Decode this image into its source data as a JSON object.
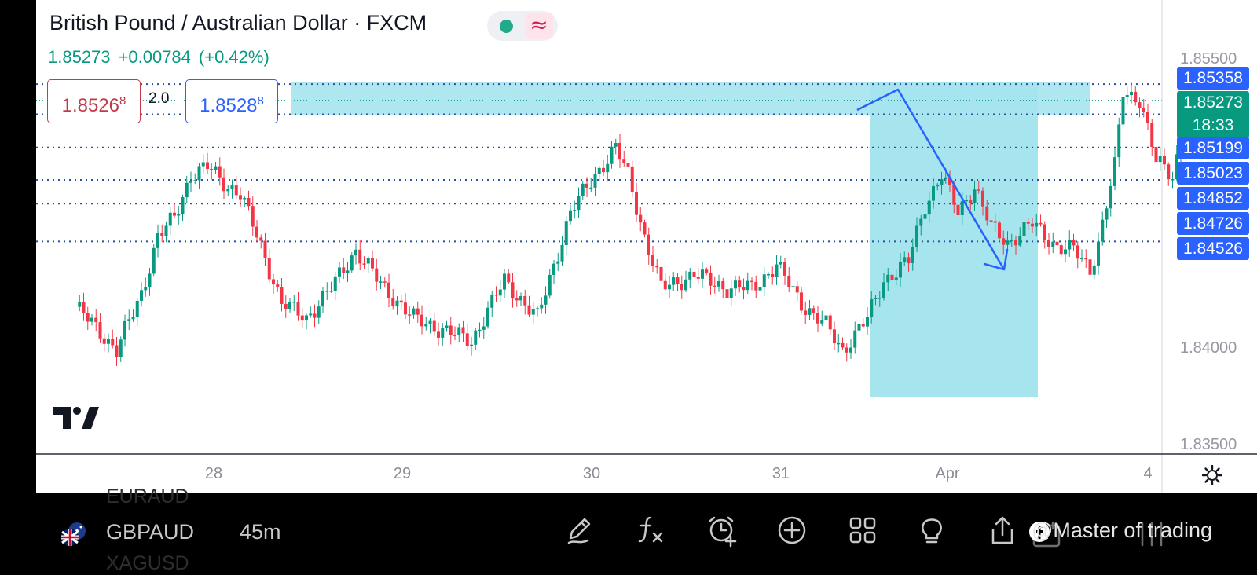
{
  "header": {
    "pair_title": "British Pound / Australian Dollar · FXCM",
    "last_price": "1.85273",
    "change": "+0.00784",
    "change_pct": "(+0.42%)",
    "status_wave": "≈"
  },
  "order_panel": {
    "sell_price": "1.8526",
    "sell_price_pip": "8",
    "spread": "2.0",
    "buy_price": "1.8528",
    "buy_price_pip": "8"
  },
  "price_axis": {
    "labels": [
      "1.85500",
      "1.84000",
      "1.83500"
    ],
    "levels": [
      {
        "value": 1.85358,
        "label": "1.85358"
      },
      {
        "value": 1.85199,
        "label": "1.85199"
      },
      {
        "value": 1.85023,
        "label": "1.85023"
      },
      {
        "value": 1.84852,
        "label": "1.84852"
      },
      {
        "value": 1.84726,
        "label": "1.84726"
      },
      {
        "value": 1.84526,
        "label": "1.84526"
      }
    ],
    "current": {
      "value": 1.85273,
      "label": "1.85273",
      "countdown": "18:33"
    }
  },
  "time_axis": {
    "labels": [
      "28",
      "29",
      "30",
      "31",
      "Apr",
      "4"
    ]
  },
  "bottom_bar": {
    "symbol": "GBPAUD",
    "interval": "45m",
    "ghost_prev": "EURAUD",
    "ghost_next": "XAGUSD",
    "watermark": "@Master of trading"
  },
  "colors": {
    "up": "#089981",
    "down": "#f23645",
    "drawing": "#2962ff",
    "zone": "#a6e4ee",
    "level_line": "#2c4f9e"
  },
  "icons": [
    "pencil-icon",
    "formula-icon",
    "alert-icon",
    "add-icon",
    "objects-icon",
    "ideas-icon",
    "share-icon",
    "facebook-icon"
  ]
}
